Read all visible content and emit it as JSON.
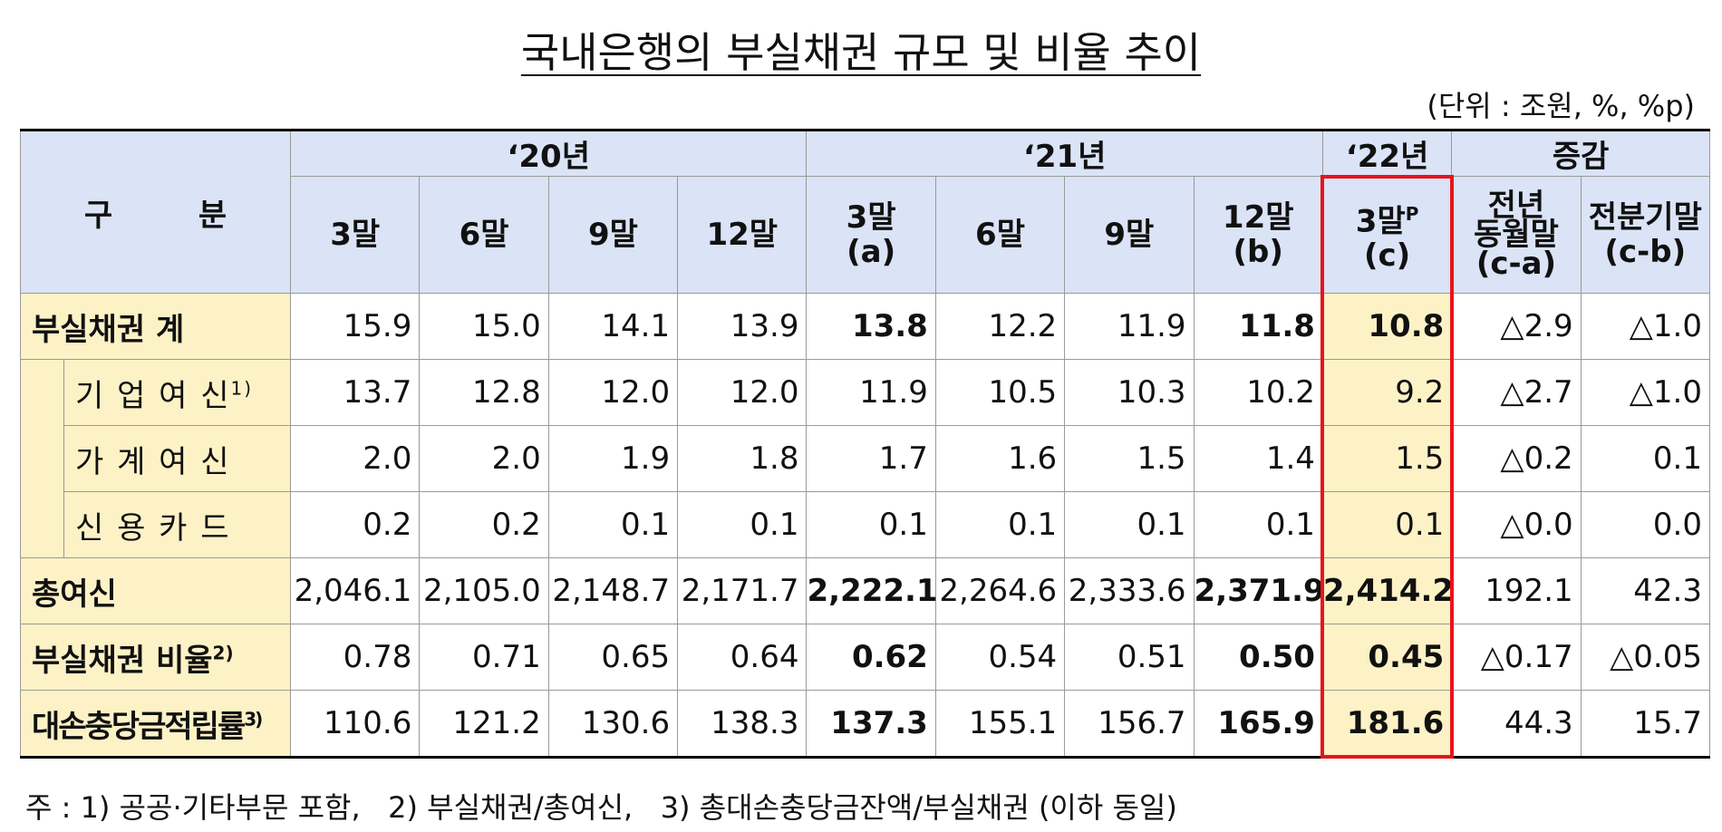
{
  "title": "국내은행의 부실채권 규모 및 비율 추이",
  "unit": "(단위 : 조원, %, %p)",
  "table": {
    "corner": "구        분",
    "groups": [
      {
        "label": "‘20년",
        "span": 4
      },
      {
        "label": "‘21년",
        "span": 4
      },
      {
        "label": "‘22년",
        "span": 1
      },
      {
        "label": "증감",
        "span": 2
      }
    ],
    "columns": [
      {
        "lines": [
          "3말"
        ]
      },
      {
        "lines": [
          "6말"
        ]
      },
      {
        "lines": [
          "9말"
        ]
      },
      {
        "lines": [
          "12말"
        ]
      },
      {
        "lines": [
          "3말",
          "(a)"
        ]
      },
      {
        "lines": [
          "6말"
        ]
      },
      {
        "lines": [
          "9말"
        ]
      },
      {
        "lines": [
          "12말",
          "(b)"
        ]
      },
      {
        "lines": [
          "3말",
          "(c)"
        ],
        "sup": "P"
      },
      {
        "lines": [
          "전년",
          "동월말",
          "(c-a)"
        ]
      },
      {
        "lines": [
          "전분기말",
          "(c-b)"
        ]
      }
    ],
    "rows": [
      {
        "label": "부실채권 계",
        "values": [
          "15.9",
          "15.0",
          "14.1",
          "13.9",
          "13.8",
          "12.2",
          "11.9",
          "11.8",
          "10.8",
          "△2.9",
          "△1.0"
        ]
      },
      {
        "label": "기 업 여 신",
        "note": "1)",
        "values": [
          "13.7",
          "12.8",
          "12.0",
          "12.0",
          "11.9",
          "10.5",
          "10.3",
          "10.2",
          "9.2",
          "△2.7",
          "△1.0"
        ]
      },
      {
        "label": "가 계 여 신",
        "values": [
          "2.0",
          "2.0",
          "1.9",
          "1.8",
          "1.7",
          "1.6",
          "1.5",
          "1.4",
          "1.5",
          "△0.2",
          "0.1"
        ]
      },
      {
        "label": "신 용 카 드",
        "values": [
          "0.2",
          "0.2",
          "0.1",
          "0.1",
          "0.1",
          "0.1",
          "0.1",
          "0.1",
          "0.1",
          "△0.0",
          "0.0"
        ]
      },
      {
        "label": "총여신",
        "values": [
          "2,046.1",
          "2,105.0",
          "2,148.7",
          "2,171.7",
          "2,222.1",
          "2,264.6",
          "2,333.6",
          "2,371.9",
          "2,414.2",
          "192.1",
          "42.3"
        ]
      },
      {
        "label": "부실채권 비율",
        "note": "2)",
        "values": [
          "0.78",
          "0.71",
          "0.65",
          "0.64",
          "0.62",
          "0.54",
          "0.51",
          "0.50",
          "0.45",
          "△0.17",
          "△0.05"
        ]
      },
      {
        "label": "대손충당금적립률",
        "note": "3)",
        "values": [
          "110.6",
          "121.2",
          "130.6",
          "138.3",
          "137.3",
          "155.1",
          "156.7",
          "165.9",
          "181.6",
          "44.3",
          "15.7"
        ]
      }
    ]
  },
  "footnote": "주 : 1) 공공·기타부문 포함,   2) 부실채권/총여신,   3) 총대손충당금잔액/부실채권 (이하 동일)"
}
